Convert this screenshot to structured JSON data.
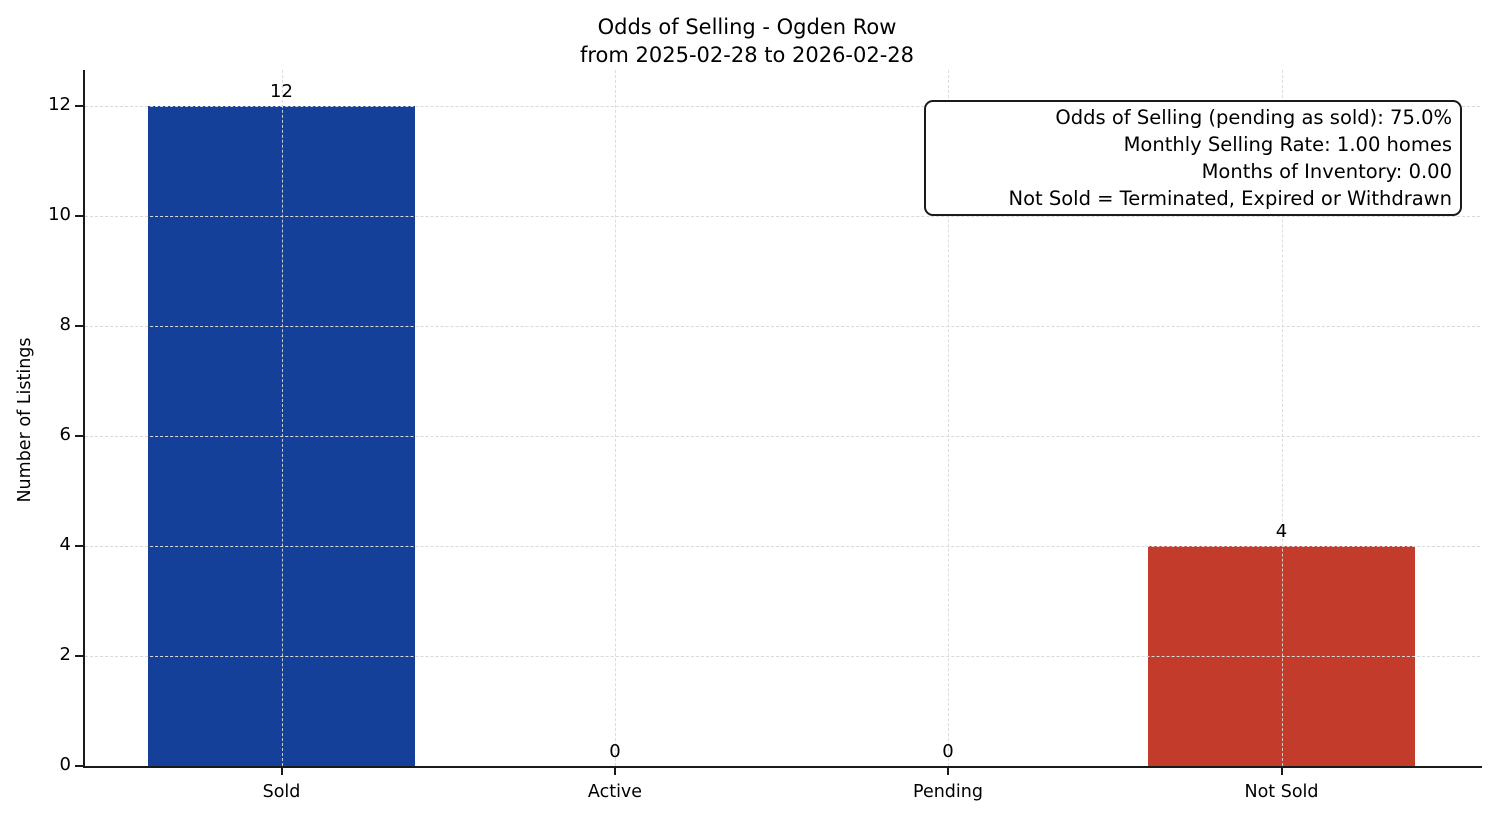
{
  "chart_data": {
    "type": "bar",
    "title": "Odds of Selling - Ogden Row",
    "subtitle": "from 2025-02-28 to 2026-02-28",
    "ylabel": "Number of Listings",
    "xlabel": "",
    "categories": [
      "Sold",
      "Active",
      "Pending",
      "Not Sold"
    ],
    "values": [
      12,
      0,
      0,
      4
    ],
    "bar_colors": [
      "#14409A",
      null,
      null,
      "#C23B2B"
    ],
    "value_labels": [
      "12",
      "0",
      "0",
      "4"
    ],
    "yticks": [
      0,
      2,
      4,
      6,
      8,
      10,
      12
    ],
    "ylim": [
      0,
      12.65
    ],
    "grid": true,
    "legend_position": "none",
    "annotation_lines": [
      "Odds of Selling (pending as sold): 75.0%",
      "Monthly Selling Rate: 1.00 homes",
      "Months of Inventory: 0.00",
      "Not Sold = Terminated, Expired or Withdrawn"
    ],
    "colors": {
      "sold_bar": "#14409A",
      "not_sold_bar": "#C23B2B",
      "grid": "#d9d9d9",
      "axis": "#1a1a1a",
      "background": "#ffffff"
    }
  }
}
